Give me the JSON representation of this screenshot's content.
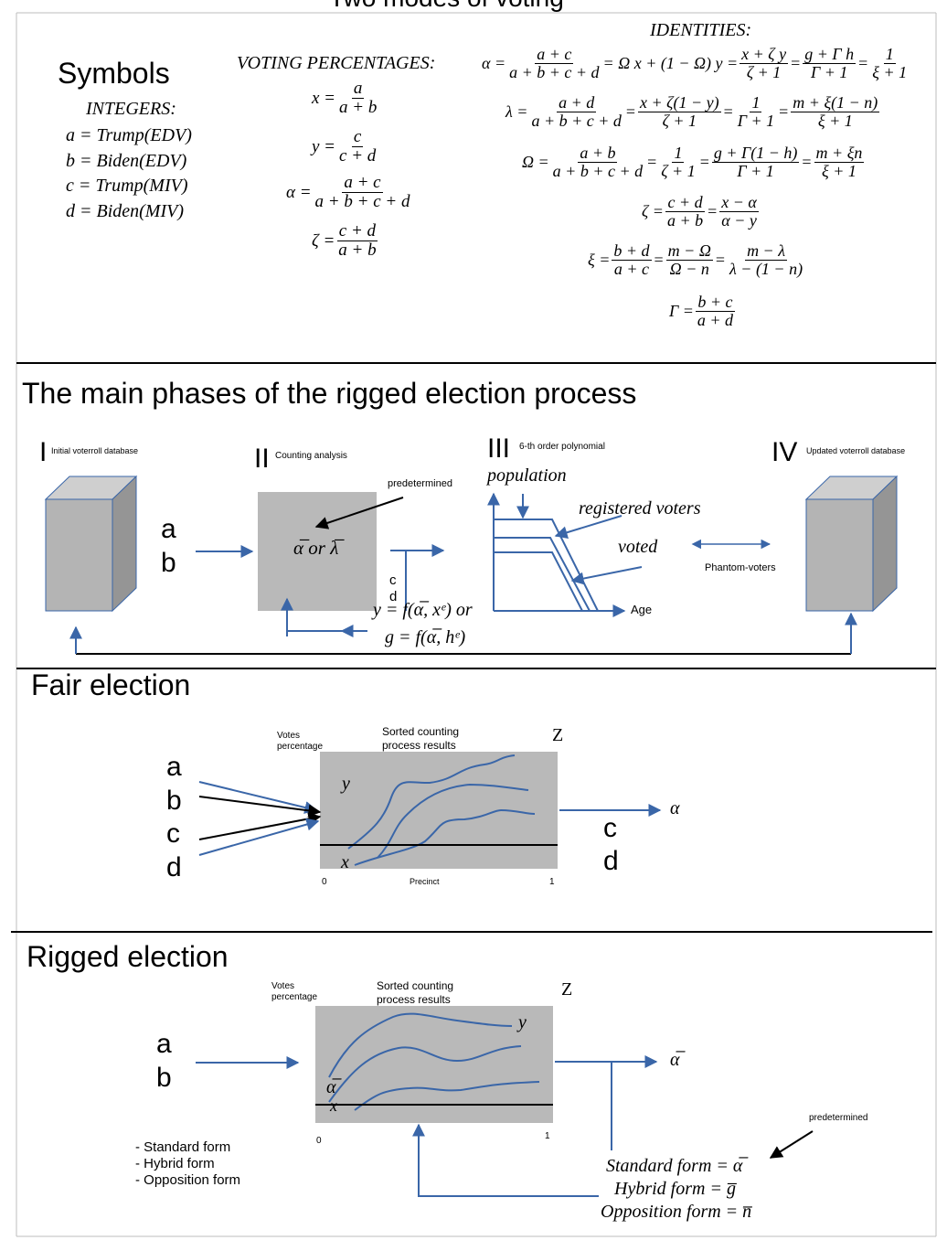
{
  "title": "Two modes of voting",
  "symbols": {
    "heading": "Symbols",
    "integers_label": "INTEGERS:",
    "items": [
      "a = Trump(EDV)",
      "b = Biden(EDV)",
      "c = Trump(MIV)",
      "d = Biden(MIV)"
    ]
  },
  "voting_percentages": {
    "label": "VOTING PERCENTAGES:",
    "x_lhs": "x =",
    "x_num": "a",
    "x_den": "a + b",
    "y_lhs": "y =",
    "y_num": "c",
    "y_den": "c + d",
    "alpha_lhs": "α =",
    "alpha_num": "a + c",
    "alpha_den": "a + b + c + d",
    "zeta_lhs": "ζ =",
    "zeta_num": "c + d",
    "zeta_den": "a + b"
  },
  "identities": {
    "label": "IDENTITIES:",
    "r1_lhs": "α =",
    "r1_f1n": "a + c",
    "r1_f1d": "a + b + c + d",
    "r1_mid": "= Ω x + (1 − Ω) y =",
    "r1_f2n": "x + ζ y",
    "r1_f2d": "ζ + 1",
    "r1_f3n": "g + Γ h",
    "r1_f3d": "Γ + 1",
    "r1_f4n": "1",
    "r1_f4d": "ξ + 1",
    "r2_lhs": "λ =",
    "r2_f1n": "a + d",
    "r2_f1d": "a + b + c + d",
    "r2_f2n": "x + ζ(1 − y)",
    "r2_f2d": "ζ + 1",
    "r2_f3n": "1",
    "r2_f3d": "Γ + 1",
    "r2_f4n": "m + ξ(1 − n)",
    "r2_f4d": "ξ + 1",
    "r3_lhs": "Ω =",
    "r3_f1n": "a + b",
    "r3_f1d": "a + b + c + d",
    "r3_f2n": "1",
    "r3_f2d": "ζ + 1",
    "r3_f3n": "g + Γ(1 − h)",
    "r3_f3d": "Γ + 1",
    "r3_f4n": "m + ξn",
    "r3_f4d": "ξ + 1",
    "r4_lhs": "ζ =",
    "r4_f1n": "c + d",
    "r4_f1d": "a + b",
    "r4_f2n": "x − α",
    "r4_f2d": "α − y",
    "r5_lhs": "ξ =",
    "r5_f1n": "b + d",
    "r5_f1d": "a + c",
    "r5_f2n": "m − Ω",
    "r5_f2d": "Ω − n",
    "r5_f3n": "m − λ",
    "r5_f3d": "λ − (1 − n)",
    "r6_lhs": "Γ =",
    "r6_f1n": "b + c",
    "r6_f1d": "a + d",
    "eq": "="
  },
  "phases": {
    "heading": "The main phases of the rigged election process",
    "p1_num": "I",
    "p1_label": "Initial voterroll database",
    "p2_num": "II",
    "p2_label": "Counting analysis",
    "p3_num": "III",
    "p3_label": "6-th order polynomial",
    "p4_num": "IV",
    "p4_label": "Updated voterroll database",
    "a": "a",
    "b": "b",
    "c": "c",
    "d": "d",
    "predetermined": "predetermined",
    "box_text": "α̅ or λ̅",
    "formula1": "y = f(α̅, xᵉ) or",
    "formula2": "g = f(α̅, hᵉ)",
    "population": "population",
    "registered": "registered voters",
    "voted": "voted",
    "age": "Age",
    "phantom": "Phantom-voters"
  },
  "fair": {
    "heading": "Fair election",
    "votes_pct": "Votes\npercentage",
    "sorted": "Sorted counting\nprocess results",
    "z": "Z",
    "y": "y",
    "x": "x",
    "a": "a",
    "b": "b",
    "c": "c",
    "d": "d",
    "out_c": "c",
    "out_d": "d",
    "alpha": "α",
    "x0": "0",
    "x1": "1",
    "precinct": "Precinct"
  },
  "rigged": {
    "heading": "Rigged election",
    "votes_pct": "Votes\npercentage",
    "sorted": "Sorted counting\nprocess results",
    "z": "Z",
    "y": "y",
    "x": "x",
    "alpha_bar": "α̅",
    "a": "a",
    "b": "b",
    "out_alpha": "α̅",
    "x0": "0",
    "x1": "1",
    "forms_list": [
      "- Standard form",
      "- Hybrid form",
      "- Opposition form"
    ],
    "predetermined": "predetermined",
    "std": "Standard form = α̅",
    "hyb": "Hybrid form = g̅",
    "opp": "Opposition form = n̅"
  },
  "colors": {
    "accent": "#3a66a8",
    "box_gray": "#b9b9b9",
    "cube_front": "#b4b4b4",
    "cube_top": "#cfcfcf",
    "cube_side": "#959595"
  }
}
